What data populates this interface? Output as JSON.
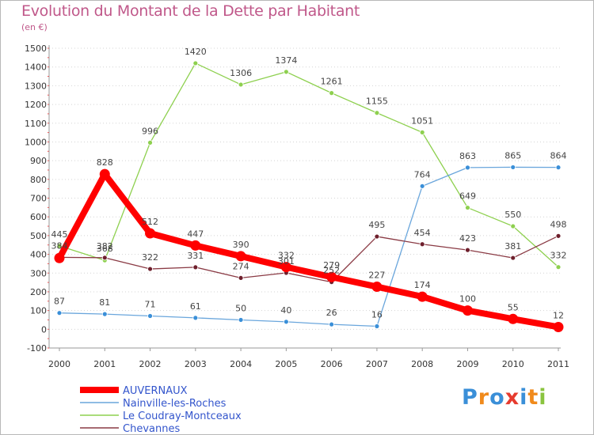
{
  "header": {
    "title": "Evolution du Montant de la Dette par Habitant",
    "subtitle": "(en €)"
  },
  "logo": {
    "text": "Proxiti",
    "letters": [
      {
        "ch": "P",
        "color": "#3a8fd8"
      },
      {
        "ch": "r",
        "color": "#f08a1c"
      },
      {
        "ch": "o",
        "color": "#3a8fd8"
      },
      {
        "ch": "x",
        "color": "#e63b2e"
      },
      {
        "ch": "i",
        "color": "#3a8fd8"
      },
      {
        "ch": "t",
        "color": "#f08a1c"
      },
      {
        "ch": "i",
        "color": "#8ac43f"
      }
    ]
  },
  "chart_data": {
    "type": "line",
    "title": "Evolution du Montant de la Dette par Habitant",
    "subtitle": "(en €)",
    "x": [
      2000,
      2001,
      2002,
      2003,
      2004,
      2005,
      2006,
      2007,
      2008,
      2009,
      2010,
      2011
    ],
    "x_tick_labels": [
      "2000",
      "2001",
      "2002",
      "2003",
      "2004",
      "2005",
      "2006",
      "2007",
      "2008",
      "2009",
      "2010",
      "2011"
    ],
    "ylim": [
      -100,
      1500
    ],
    "y_ticks": [
      -100,
      0,
      100,
      200,
      300,
      400,
      500,
      600,
      700,
      800,
      900,
      1000,
      1100,
      1200,
      1300,
      1400,
      1500
    ],
    "grid": "horizontal dotted",
    "legend_position": "bottom-left",
    "series": [
      {
        "name": "Le Coudray-Montceaux",
        "color": "#8ed04f",
        "dot_color": "#8ed04f",
        "width": "thin",
        "values": [
          445,
          368,
          996,
          1420,
          1306,
          1374,
          1261,
          1155,
          1051,
          649,
          550,
          332
        ],
        "labels": [
          "445",
          "368",
          "996",
          "1420",
          "1306",
          "1374",
          "1261",
          "1155",
          "1051",
          "649",
          "550",
          "332"
        ]
      },
      {
        "name": "Nainville-les-Roches",
        "color": "#6aa6dc",
        "dot_color": "#3a8fd8",
        "width": "thin",
        "values": [
          87,
          81,
          71,
          61,
          50,
          40,
          26,
          16,
          764,
          863,
          865,
          864
        ],
        "labels": [
          "87",
          "81",
          "71",
          "61",
          "50",
          "40",
          "26",
          "16",
          "764",
          "863",
          "865",
          "864"
        ]
      },
      {
        "name": "Chevannes",
        "color": "#8a3a44",
        "dot_color": "#6e1f2c",
        "width": "thin",
        "values": [
          384,
          382,
          322,
          331,
          274,
          301,
          252,
          495,
          454,
          423,
          381,
          498
        ],
        "labels": [
          "384",
          "382",
          "322",
          "331",
          "274",
          "301",
          "252",
          "495",
          "454",
          "423",
          "381",
          "498"
        ]
      },
      {
        "name": "AUVERNAUX",
        "color": "#ff0000",
        "dot_color": "#ff0000",
        "width": "thick",
        "values": [
          380,
          828,
          512,
          447,
          390,
          332,
          279,
          227,
          174,
          100,
          55,
          12
        ],
        "labels": [
          "",
          "828",
          "512",
          "447",
          "390",
          "332",
          "279",
          "227",
          "174",
          "100",
          "55",
          "12"
        ]
      }
    ],
    "legend_order": [
      "AUVERNAUX",
      "Nainville-les-Roches",
      "Le Coudray-Montceaux",
      "Chevannes"
    ]
  }
}
